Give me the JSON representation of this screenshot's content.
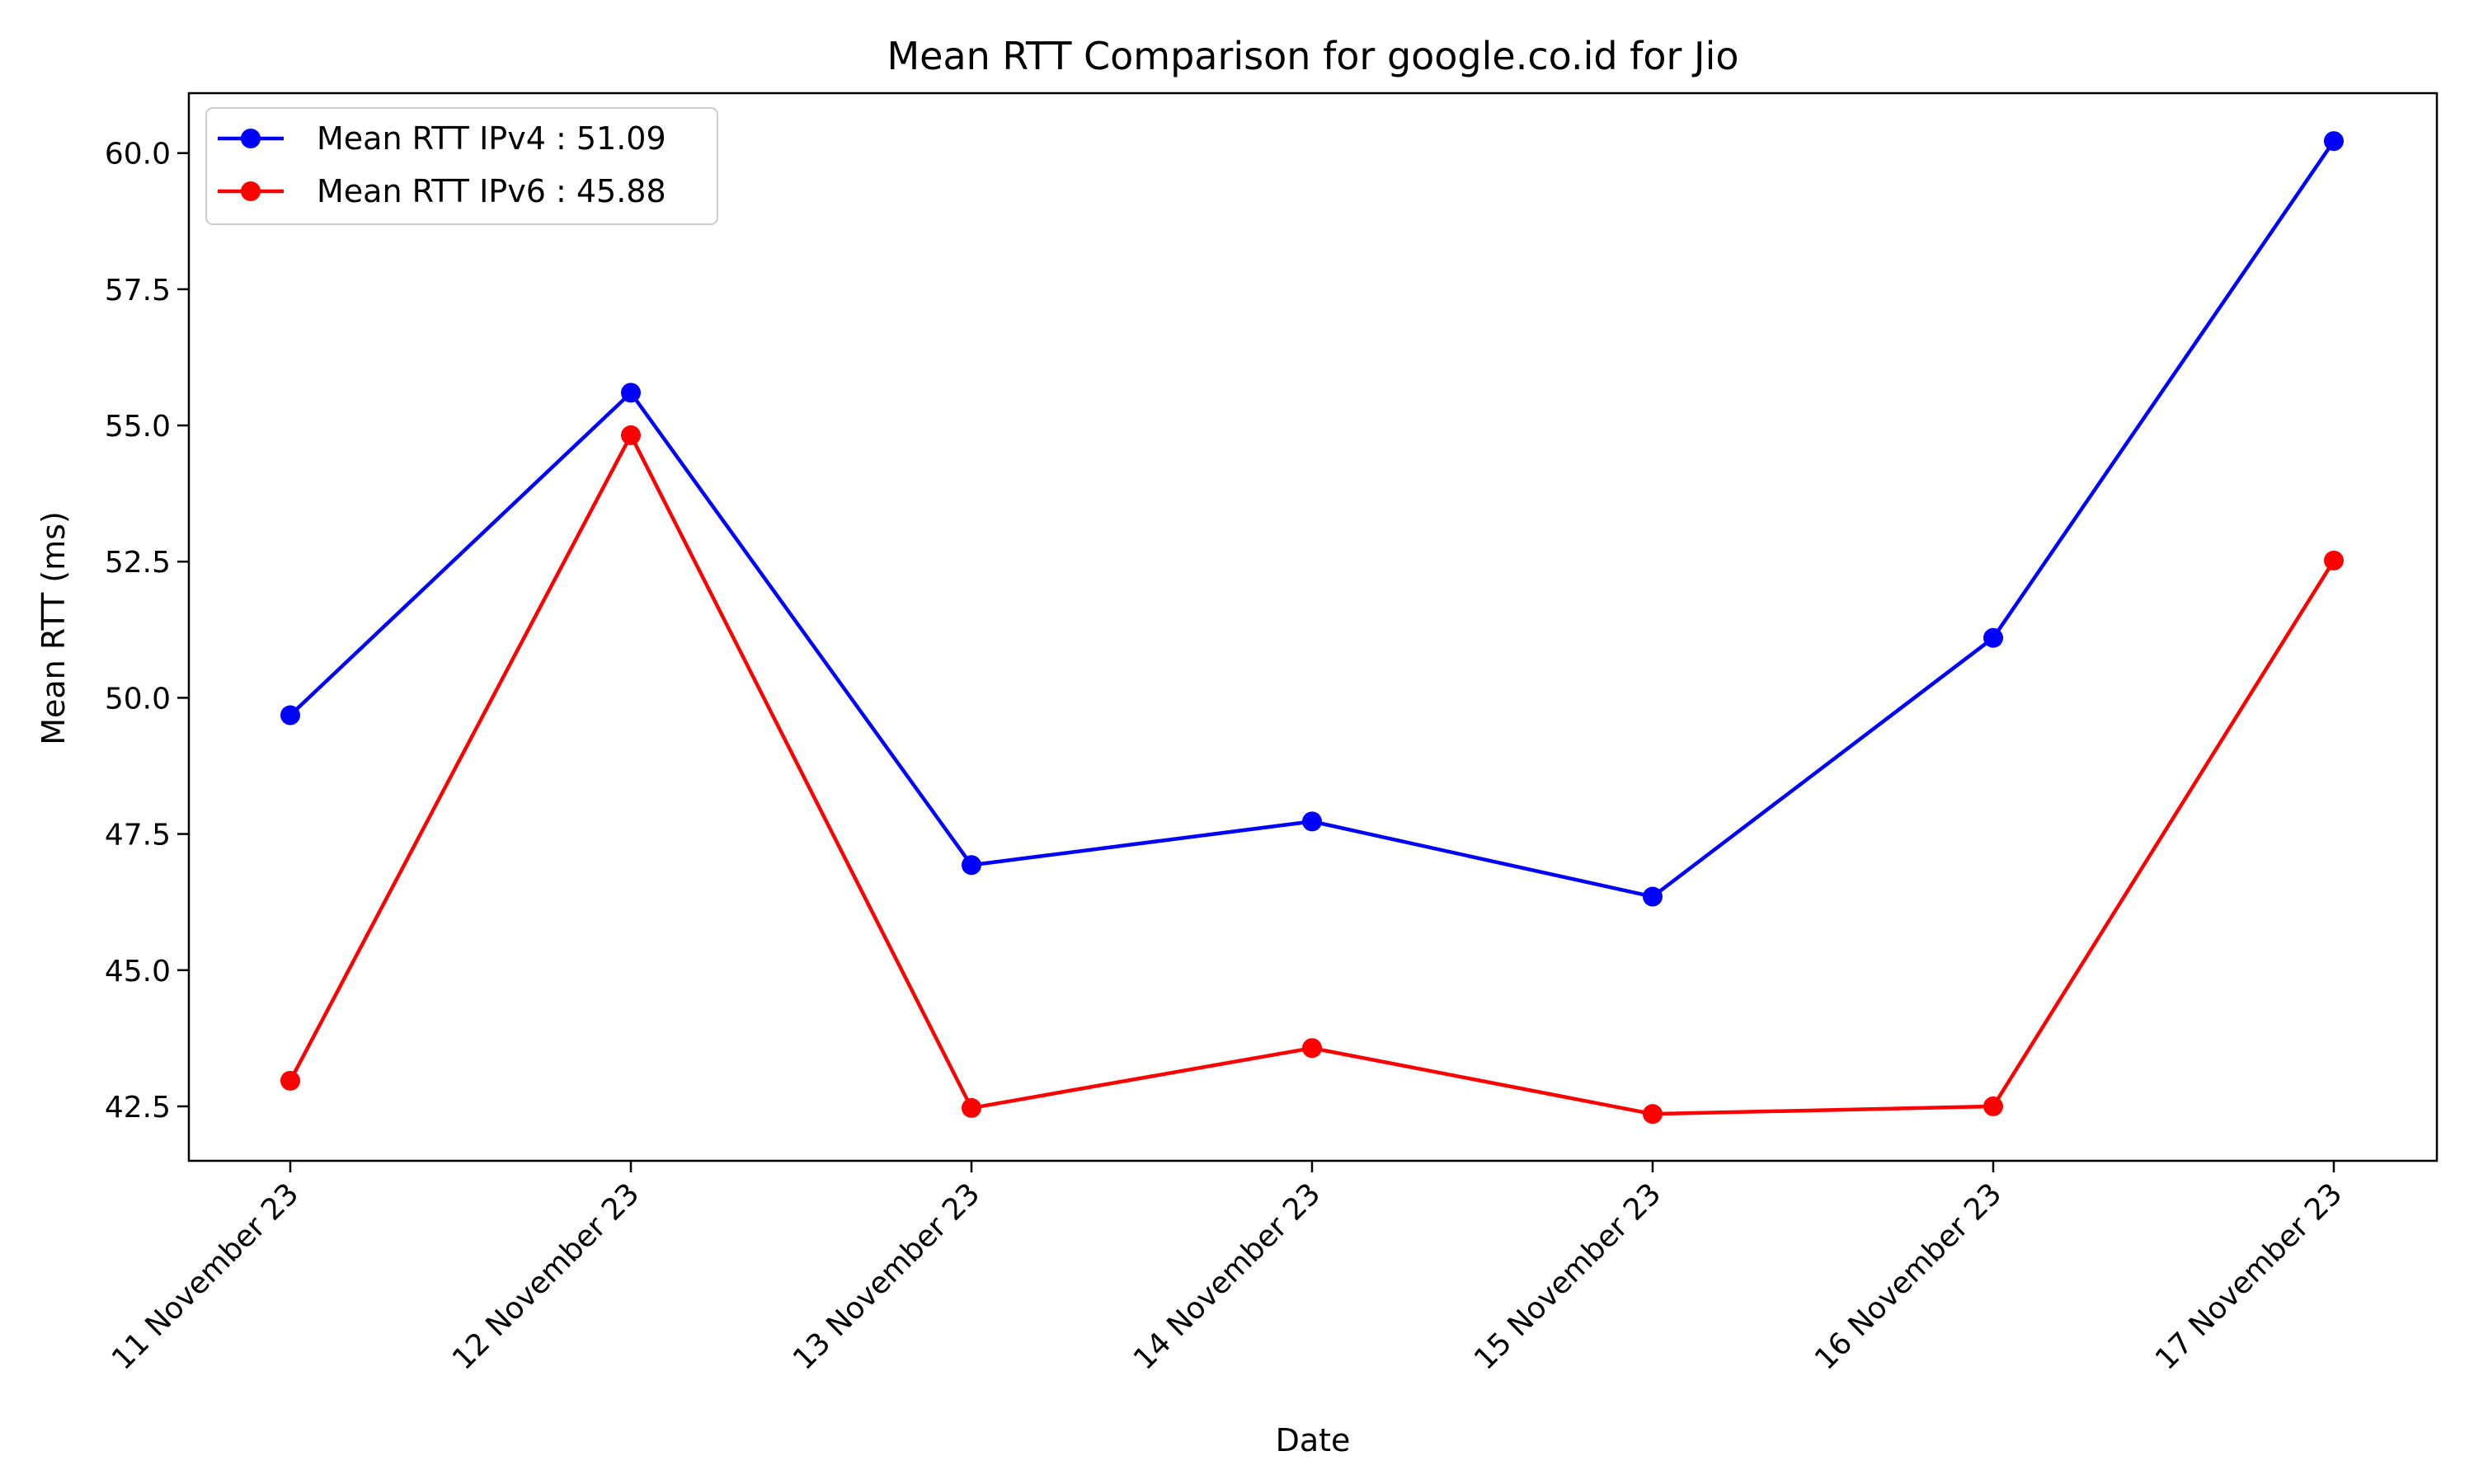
{
  "chart_data": {
    "type": "line",
    "title": "Mean RTT Comparison for google.co.id for Jio",
    "xlabel": "Date",
    "ylabel": "Mean RTT (ms)",
    "categories": [
      "11 November 23",
      "12 November 23",
      "13 November 23",
      "14 November 23",
      "15 November 23",
      "16 November 23",
      "17 November 23"
    ],
    "ylim": [
      41.5,
      61.1
    ],
    "yticks": [
      "42.5",
      "45.0",
      "47.5",
      "50.0",
      "52.5",
      "55.0",
      "57.5",
      "60.0"
    ],
    "grid": false,
    "legend_position": "top-left",
    "series": [
      {
        "name": "Mean RTT IPv4 : 51.09",
        "color": "#0000ff",
        "values": [
          49.68,
          55.6,
          46.93,
          47.73,
          46.35,
          51.1,
          60.22
        ]
      },
      {
        "name": "Mean RTT IPv6 : 45.88",
        "color": "#ff0000",
        "values": [
          42.97,
          54.82,
          42.47,
          43.57,
          42.36,
          42.5,
          52.52
        ]
      }
    ]
  }
}
